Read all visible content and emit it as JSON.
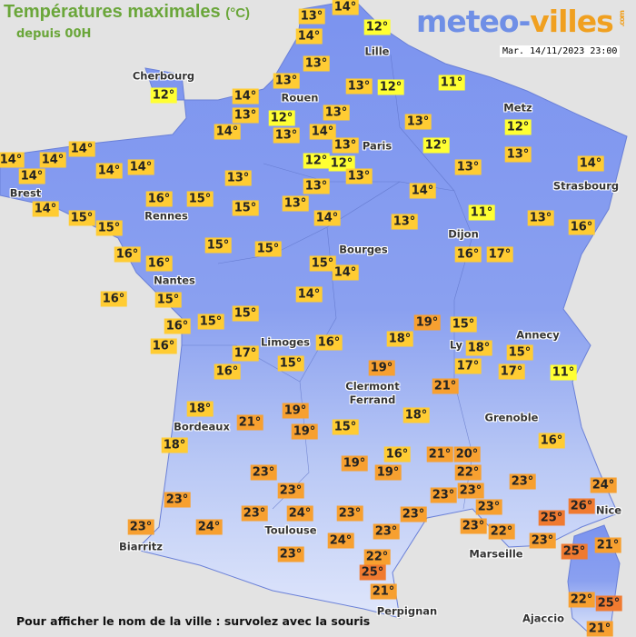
{
  "header": {
    "title": "Températures maximales",
    "unit": "(°C)",
    "subtitle": "depuis 00H",
    "logo_part1": "meteo-",
    "logo_part2": "villes",
    "logo_suffix": ".com",
    "datetime": "Mar. 14/11/2023 23:00"
  },
  "footer": {
    "hint": "Pour afficher le nom de la ville : survolez avec la souris"
  },
  "colors": {
    "land": "#7b93ef",
    "land_south": "#c9d6f7",
    "sea": "#e3e3e3",
    "temp_cool": "#ffff33",
    "temp_mild": "#ffcc33",
    "temp_warm": "#f7a030",
    "temp_hot": "#f07a30"
  },
  "cities": [
    "Lille",
    "Cherbourg",
    "Rouen",
    "Metz",
    "Paris",
    "Brest",
    "Strasbourg",
    "Rennes",
    "Dijon",
    "Bourges",
    "Nantes",
    "Limoges",
    "Annecy",
    "Ly",
    "Clermont\nFerrand",
    "Grenoble",
    "Bordeaux",
    "Nice",
    "Toulouse",
    "Biarritz",
    "Marseille",
    "Perpignan",
    "Ajaccio"
  ],
  "temperatures": [
    14,
    13,
    12,
    14,
    13,
    11,
    13,
    13,
    12,
    12,
    14,
    13,
    12,
    13,
    14,
    13,
    14,
    13,
    12,
    13,
    12,
    13,
    14,
    14,
    14,
    14,
    14,
    14,
    12,
    12,
    13,
    13,
    13,
    14,
    13,
    16,
    15,
    14,
    15,
    15,
    15,
    13,
    14,
    11,
    13,
    14,
    13,
    16,
    16,
    15,
    15,
    16,
    16,
    17,
    15,
    14,
    16,
    15,
    14,
    16,
    15,
    15,
    19,
    15,
    16,
    17,
    16,
    18,
    18,
    15,
    17,
    17,
    15,
    16,
    19,
    11,
    21,
    18,
    19,
    21,
    15,
    19,
    18,
    18,
    16,
    21,
    20,
    19,
    19,
    16,
    23,
    22,
    23,
    23,
    23,
    23,
    24,
    23,
    26,
    23,
    23,
    24,
    23,
    23,
    23,
    22,
    25,
    23,
    24,
    23,
    24,
    23,
    25,
    21,
    23,
    22,
    25,
    21,
    22,
    25,
    21
  ]
}
